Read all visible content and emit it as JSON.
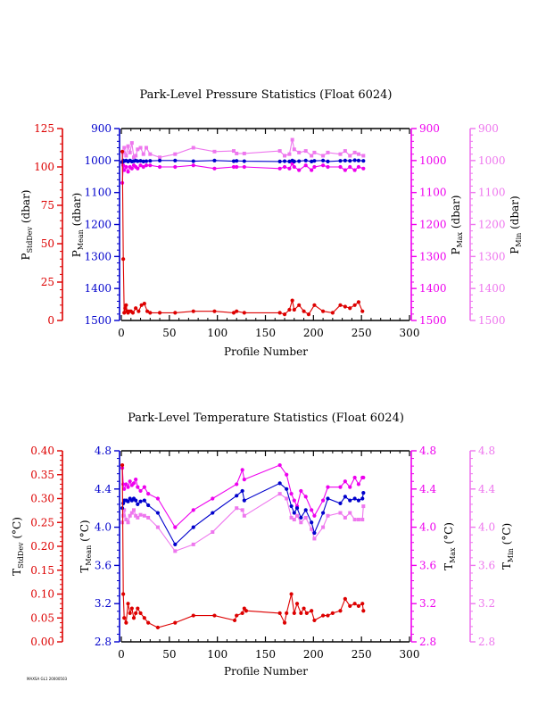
{
  "footer_text": "MAXSA GL1 20000503",
  "colors": {
    "stddev": "#dd0000",
    "mean": "#0000cc",
    "max": "#ee00ee",
    "min": "#ee77ee",
    "frame": "#000000"
  },
  "chart_data": [
    {
      "type": "line",
      "title": "Park-Level Pressure Statistics (Float 6024)",
      "xlabel": "Profile Number",
      "xlim": [
        0,
        300
      ],
      "xticks": [
        0,
        50,
        100,
        150,
        200,
        250,
        300
      ],
      "grid": false,
      "axes": {
        "stddev": {
          "label": "P",
          "sub": "StdDev",
          "unit": " (dbar)",
          "lim": [
            0,
            125
          ],
          "reverse": false,
          "ticks": [
            "0",
            "25",
            "50",
            "75",
            "100",
            "125"
          ]
        },
        "mean": {
          "label": "P",
          "sub": "Mean",
          "unit": " (dbar)",
          "lim": [
            900,
            1500
          ],
          "reverse": true,
          "ticks": [
            "900",
            "1000",
            "1100",
            "1200",
            "1300",
            "1400",
            "1500"
          ]
        },
        "max": {
          "label": "P",
          "sub": "Max",
          "unit": " (dbar)",
          "lim": [
            900,
            1500
          ],
          "reverse": true,
          "ticks": [
            "900",
            "1000",
            "1100",
            "1200",
            "1300",
            "1400",
            "1500"
          ]
        },
        "min": {
          "label": "P",
          "sub": "Min",
          "unit": " (dbar)",
          "lim": [
            900,
            1500
          ],
          "reverse": true,
          "ticks": [
            "900",
            "1000",
            "1100",
            "1200",
            "1300",
            "1400",
            "1500"
          ]
        }
      },
      "series": [
        {
          "axis": "min",
          "marker": "square",
          "x": [
            1,
            2,
            3,
            5,
            7,
            9,
            11,
            13,
            15,
            17,
            20,
            23,
            26,
            30,
            40,
            56,
            75,
            97,
            117,
            120,
            128,
            165,
            170,
            175,
            178,
            180,
            185,
            192,
            198,
            201,
            210,
            215,
            228,
            233,
            238,
            243,
            247,
            252
          ],
          "y": [
            1005,
            975,
            960,
            985,
            955,
            975,
            945,
            990,
            985,
            965,
            960,
            980,
            960,
            980,
            990,
            980,
            960,
            972,
            970,
            978,
            978,
            970,
            985,
            980,
            935,
            965,
            975,
            970,
            985,
            975,
            985,
            975,
            980,
            970,
            985,
            975,
            980,
            985
          ]
        },
        {
          "axis": "max",
          "marker": "circle",
          "x": [
            1,
            2,
            3,
            5,
            7,
            9,
            11,
            13,
            15,
            17,
            20,
            23,
            26,
            30,
            40,
            56,
            75,
            97,
            117,
            120,
            128,
            165,
            170,
            175,
            178,
            180,
            185,
            192,
            198,
            201,
            210,
            215,
            228,
            233,
            238,
            243,
            247,
            252
          ],
          "y": [
            1070,
            1015,
            1030,
            1020,
            1035,
            1020,
            1025,
            1015,
            1020,
            1025,
            1015,
            1020,
            1015,
            1015,
            1020,
            1020,
            1015,
            1025,
            1020,
            1020,
            1020,
            1025,
            1020,
            1025,
            1010,
            1020,
            1030,
            1015,
            1030,
            1020,
            1015,
            1020,
            1020,
            1030,
            1020,
            1030,
            1020,
            1025
          ]
        },
        {
          "axis": "mean",
          "marker": "circle",
          "x": [
            1,
            2,
            3,
            5,
            7,
            9,
            11,
            13,
            15,
            17,
            20,
            23,
            26,
            30,
            40,
            56,
            75,
            97,
            117,
            120,
            128,
            165,
            170,
            175,
            178,
            180,
            185,
            192,
            198,
            201,
            210,
            215,
            228,
            233,
            238,
            243,
            247,
            252
          ],
          "y": [
            1005,
            1000,
            1002,
            1000,
            1003,
            1000,
            1003,
            1002,
            1000,
            1002,
            1001,
            1003,
            1002,
            1001,
            1000,
            1000,
            1002,
            1000,
            1002,
            1001,
            1002,
            1003,
            1002,
            1003,
            1000,
            1003,
            1002,
            1000,
            1003,
            1001,
            1000,
            1003,
            1001,
            1000,
            1001,
            999,
            1000,
            1001
          ]
        },
        {
          "axis": "stddev",
          "marker": "circle",
          "x": [
            1,
            2,
            3,
            4,
            5,
            6,
            7,
            8,
            10,
            12,
            15,
            18,
            21,
            24,
            27,
            30,
            40,
            56,
            75,
            97,
            117,
            120,
            128,
            165,
            170,
            175,
            178,
            180,
            185,
            190,
            195,
            201,
            210,
            220,
            228,
            233,
            238,
            243,
            247,
            251
          ],
          "y": [
            110,
            40,
            5,
            8,
            10,
            6,
            5,
            6,
            6,
            5,
            8,
            6,
            10,
            11,
            6,
            5,
            5,
            5,
            6,
            6,
            5,
            6,
            5,
            5,
            4,
            7,
            13,
            7,
            10,
            6,
            4,
            10,
            6,
            5,
            10,
            9,
            8,
            10,
            12,
            6
          ]
        }
      ]
    },
    {
      "type": "line",
      "title": "Park-Level Temperature Statistics (Float 6024)",
      "xlabel": "Profile Number",
      "xlim": [
        0,
        300
      ],
      "xticks": [
        0,
        50,
        100,
        150,
        200,
        250,
        300
      ],
      "grid": false,
      "axes": {
        "stddev": {
          "label": "T",
          "sub": "StdDev",
          "unit": " (°C)",
          "lim": [
            0,
            0.4
          ],
          "reverse": false,
          "ticks": [
            "0.00",
            "0.05",
            "0.10",
            "0.15",
            "0.20",
            "0.25",
            "0.30",
            "0.35",
            "0.40"
          ]
        },
        "mean": {
          "label": "T",
          "sub": "Mean",
          "unit": " (°C)",
          "lim": [
            2.8,
            4.8
          ],
          "reverse": false,
          "ticks": [
            "2.8",
            "3.2",
            "3.6",
            "4.0",
            "4.4",
            "4.8"
          ]
        },
        "max": {
          "label": "T",
          "sub": "Max",
          "unit": " (°C)",
          "lim": [
            2.8,
            4.8
          ],
          "reverse": false,
          "ticks": [
            "2.8",
            "3.2",
            "3.6",
            "4.0",
            "4.4",
            "4.8"
          ]
        },
        "min": {
          "label": "T",
          "sub": "Min",
          "unit": " (°C)",
          "lim": [
            2.8,
            4.8
          ],
          "reverse": false,
          "ticks": [
            "2.8",
            "3.2",
            "3.6",
            "4.0",
            "4.4",
            "4.8"
          ]
        }
      },
      "series": [
        {
          "axis": "min",
          "marker": "square",
          "x": [
            1,
            2,
            3,
            5,
            7,
            9,
            11,
            13,
            15,
            17,
            20,
            24,
            28,
            38,
            56,
            75,
            95,
            120,
            126,
            128,
            165,
            172,
            177,
            180,
            183,
            187,
            192,
            198,
            201,
            210,
            215,
            228,
            233,
            238,
            243,
            247,
            251,
            252
          ],
          "y": [
            4.05,
            4.12,
            4.18,
            4.08,
            4.05,
            4.12,
            4.15,
            4.18,
            4.12,
            4.1,
            4.13,
            4.12,
            4.1,
            4.0,
            3.75,
            3.82,
            3.95,
            4.2,
            4.18,
            4.12,
            4.35,
            4.3,
            4.1,
            4.08,
            4.12,
            4.05,
            4.1,
            3.98,
            3.88,
            4.0,
            4.12,
            4.15,
            4.1,
            4.15,
            4.08,
            4.08,
            4.08,
            4.22
          ]
        },
        {
          "axis": "max",
          "marker": "circle",
          "x": [
            1,
            2,
            3,
            5,
            7,
            9,
            11,
            13,
            15,
            17,
            20,
            24,
            28,
            38,
            56,
            75,
            95,
            120,
            126,
            128,
            165,
            172,
            177,
            180,
            183,
            187,
            192,
            198,
            201,
            210,
            215,
            228,
            233,
            238,
            243,
            247,
            251,
            252
          ],
          "y": [
            4.62,
            4.45,
            4.4,
            4.45,
            4.42,
            4.48,
            4.44,
            4.46,
            4.5,
            4.42,
            4.38,
            4.42,
            4.35,
            4.3,
            4.0,
            4.18,
            4.3,
            4.45,
            4.6,
            4.5,
            4.65,
            4.55,
            4.35,
            4.28,
            4.22,
            4.38,
            4.32,
            4.18,
            4.12,
            4.28,
            4.42,
            4.42,
            4.48,
            4.42,
            4.52,
            4.45,
            4.52,
            4.52
          ]
        },
        {
          "axis": "mean",
          "marker": "circle",
          "x": [
            1,
            2,
            3,
            5,
            7,
            9,
            11,
            13,
            15,
            17,
            20,
            24,
            28,
            38,
            56,
            75,
            95,
            120,
            126,
            128,
            165,
            172,
            177,
            180,
            183,
            187,
            192,
            198,
            201,
            210,
            215,
            228,
            233,
            238,
            243,
            247,
            251,
            252
          ],
          "y": [
            4.2,
            4.25,
            4.28,
            4.28,
            4.27,
            4.3,
            4.28,
            4.3,
            4.28,
            4.24,
            4.27,
            4.28,
            4.23,
            4.15,
            3.82,
            4.0,
            4.15,
            4.33,
            4.38,
            4.28,
            4.46,
            4.4,
            4.22,
            4.15,
            4.2,
            4.1,
            4.18,
            4.05,
            3.94,
            4.15,
            4.3,
            4.25,
            4.32,
            4.28,
            4.3,
            4.28,
            4.3,
            4.36
          ]
        },
        {
          "axis": "stddev",
          "marker": "circle",
          "x": [
            1,
            2,
            3,
            5,
            7,
            9,
            11,
            13,
            15,
            17,
            20,
            24,
            28,
            38,
            56,
            75,
            97,
            118,
            120,
            126,
            128,
            130,
            165,
            170,
            172,
            177,
            180,
            183,
            187,
            190,
            193,
            198,
            201,
            210,
            215,
            220,
            228,
            233,
            238,
            243,
            247,
            251,
            252
          ],
          "y": [
            0.37,
            0.1,
            0.05,
            0.04,
            0.08,
            0.06,
            0.07,
            0.05,
            0.06,
            0.07,
            0.06,
            0.05,
            0.04,
            0.03,
            0.04,
            0.055,
            0.055,
            0.045,
            0.055,
            0.06,
            0.07,
            0.065,
            0.06,
            0.04,
            0.06,
            0.1,
            0.06,
            0.08,
            0.06,
            0.07,
            0.06,
            0.065,
            0.045,
            0.055,
            0.055,
            0.06,
            0.065,
            0.09,
            0.075,
            0.08,
            0.075,
            0.08,
            0.065
          ]
        }
      ]
    }
  ]
}
